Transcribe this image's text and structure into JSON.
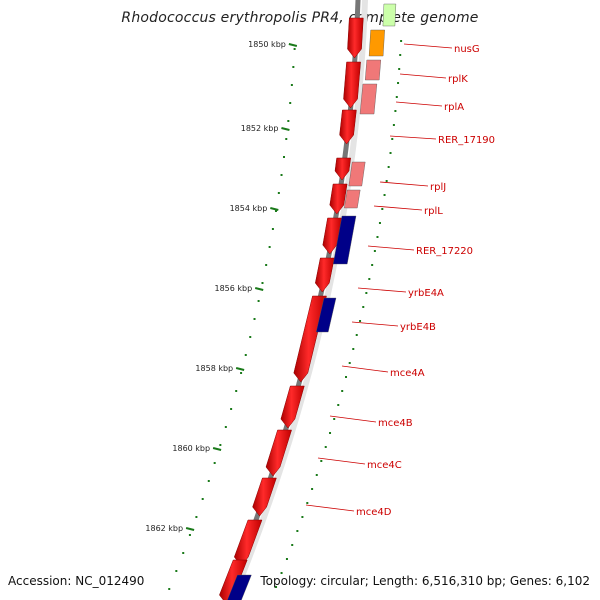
{
  "title": "Rhodococcus erythropolis PR4, complete genome",
  "accession_text": "Accession: NC_012490",
  "summary_text": "Topology: circular; Length: 6,516,310 bp; Genes: 6,102",
  "ruler_ticks": [
    "1850 kbp",
    "1852 kbp",
    "1854 kbp",
    "1856 kbp",
    "1858 kbp",
    "1860 kbp",
    "1862 kbp"
  ],
  "genes": [
    {
      "label": "nusG",
      "color": "#ff9900"
    },
    {
      "label": "rplK",
      "color": "#f07878"
    },
    {
      "label": "rplA",
      "color": "#f07878"
    },
    {
      "label": "RER_17190",
      "color": "#ff0000"
    },
    {
      "label": "rplJ",
      "color": "#f07878"
    },
    {
      "label": "rplL",
      "color": "#f07878"
    },
    {
      "label": "RER_17220",
      "color": "#000088"
    },
    {
      "label": "yrbE4A",
      "color": "#ff0000"
    },
    {
      "label": "yrbE4B",
      "color": "#000088"
    },
    {
      "label": "mce4A",
      "color": "#ff0000"
    },
    {
      "label": "mce4B",
      "color": "#ff0000"
    },
    {
      "label": "mce4C",
      "color": "#ff0000"
    },
    {
      "label": "mce4D",
      "color": "#ff0000"
    }
  ],
  "colors": {
    "forward_strand": "#ff0000",
    "ribosomal": "#f07878",
    "transport": "#000088",
    "nusG": "#ff9900",
    "tick": "#1a7a1a",
    "backbone": "#888888"
  }
}
